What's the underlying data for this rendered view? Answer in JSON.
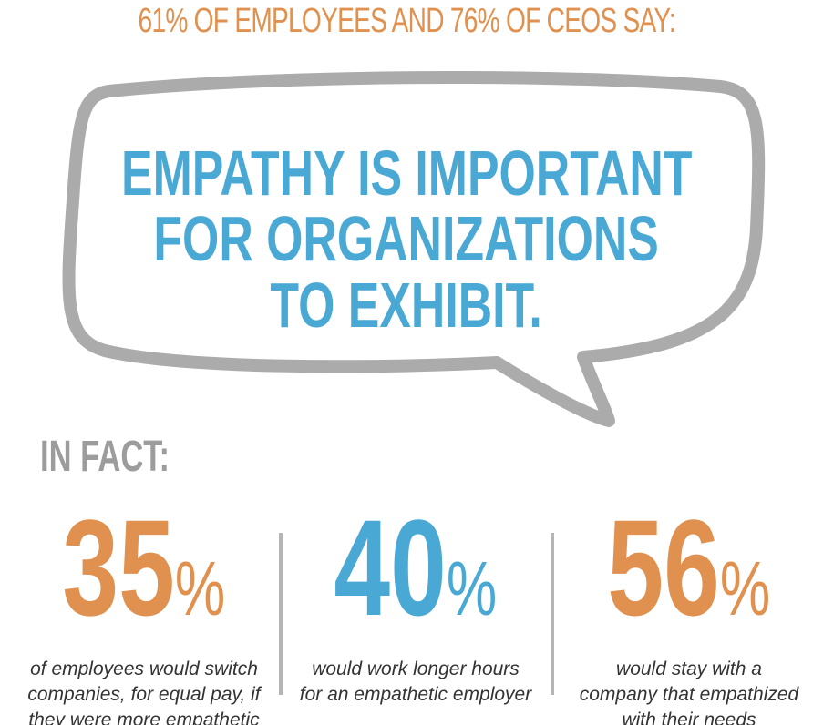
{
  "header": {
    "title": "61% OF EMPLOYEES AND 76% OF CEOS SAY:"
  },
  "bubble": {
    "lines": [
      "EMPATHY IS IMPORTANT",
      "FOR ORGANIZATIONS",
      "TO EXHIBIT."
    ]
  },
  "subheading": "IN FACT:",
  "stats": [
    {
      "number": "35",
      "unit": "%",
      "lines": [
        "of employees would switch",
        "companies, for equal pay, if",
        "they were more empathetic"
      ]
    },
    {
      "number": "40",
      "unit": "%",
      "lines": [
        "would work longer hours",
        "for an empathetic employer"
      ]
    },
    {
      "number": "56",
      "unit": "%",
      "lines": [
        "would stay with a",
        "company that empathized",
        "with their needs"
      ]
    }
  ]
}
